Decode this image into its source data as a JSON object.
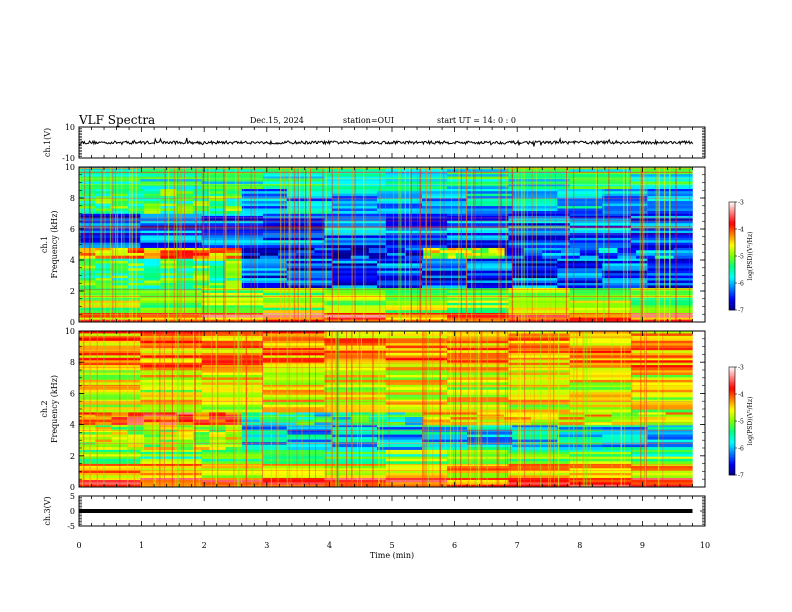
{
  "header": {
    "title": "VLF Spectra",
    "date": "Dec.15, 2024",
    "station": "station=OUI",
    "start_time": "start  UT  =   14: 0   : 0"
  },
  "chart_data": [
    {
      "type": "line",
      "panel": "ch1-waveform",
      "ylabel": "ch.1(V)",
      "ylim": [
        -10,
        10
      ],
      "yticks": [
        -10,
        10
      ],
      "xlim": [
        0,
        9.8
      ],
      "baseline": 0,
      "approx_amplitude_v": 1,
      "color": "#000000"
    },
    {
      "type": "heatmap",
      "panel": "ch1-spectrogram",
      "ylabel": "ch.1\nFrequency  (kHz)",
      "ylim": [
        0,
        10
      ],
      "yticks": [
        0,
        2,
        4,
        6,
        8,
        10
      ],
      "xlim": [
        0,
        9.8
      ],
      "colorbar": {
        "label": "log(PSD)(V²/Hz)",
        "ticks": [
          -3,
          -4,
          -5,
          -6,
          -7
        ],
        "range": [
          -7,
          -3
        ]
      },
      "bands": [
        {
          "from_min": 0,
          "to_min": 9.8,
          "f_lo": 0.0,
          "f_hi": 0.3,
          "level": -4.2
        },
        {
          "from_min": 0,
          "to_min": 9.8,
          "f_lo": 0.3,
          "f_hi": 0.6,
          "level": -3.8
        },
        {
          "from_min": 0,
          "to_min": 9.8,
          "f_lo": 0.6,
          "f_hi": 1.4,
          "level": -4.9
        },
        {
          "from_min": 0,
          "to_min": 9.8,
          "f_lo": 1.4,
          "f_hi": 2.2,
          "level": -5.0
        },
        {
          "from_min": 0,
          "to_min": 2.6,
          "f_lo": 2.2,
          "f_hi": 4.1,
          "level": -5.3
        },
        {
          "from_min": 2.6,
          "to_min": 9.8,
          "f_lo": 2.2,
          "f_hi": 4.1,
          "level": -6.4
        },
        {
          "from_min": 0,
          "to_min": 2.6,
          "f_lo": 4.1,
          "f_hi": 4.8,
          "level": -4.3
        },
        {
          "from_min": 2.6,
          "to_min": 5.5,
          "f_lo": 4.1,
          "f_hi": 4.8,
          "level": -6.6
        },
        {
          "from_min": 5.5,
          "to_min": 6.8,
          "f_lo": 4.1,
          "f_hi": 4.8,
          "level": -4.8
        },
        {
          "from_min": 6.8,
          "to_min": 9.8,
          "f_lo": 4.1,
          "f_hi": 4.8,
          "level": -6.2
        },
        {
          "from_min": 0,
          "to_min": 9.8,
          "f_lo": 4.8,
          "f_hi": 7.0,
          "level": -6.3
        },
        {
          "from_min": 0,
          "to_min": 2.6,
          "f_lo": 7.0,
          "f_hi": 8.6,
          "level": -5.3
        },
        {
          "from_min": 2.6,
          "to_min": 9.8,
          "f_lo": 7.0,
          "f_hi": 8.6,
          "level": -6.0
        },
        {
          "from_min": 0,
          "to_min": 9.8,
          "f_lo": 8.6,
          "f_hi": 10.0,
          "level": -5.6
        }
      ]
    },
    {
      "type": "heatmap",
      "panel": "ch2-spectrogram",
      "ylabel": "ch.2\nFrequency  (kHz)",
      "ylim": [
        0,
        10
      ],
      "yticks": [
        0,
        2,
        4,
        6,
        8,
        10
      ],
      "xlim": [
        0,
        9.8
      ],
      "colorbar": {
        "label": "log(PSD)(V²/Hz)",
        "ticks": [
          -3,
          -4,
          -5,
          -6,
          -7
        ],
        "range": [
          -7,
          -3
        ]
      },
      "bands": [
        {
          "from_min": 0,
          "to_min": 9.8,
          "f_lo": 0.0,
          "f_hi": 0.6,
          "level": -4.0
        },
        {
          "from_min": 0,
          "to_min": 9.8,
          "f_lo": 0.6,
          "f_hi": 1.5,
          "level": -4.5
        },
        {
          "from_min": 0,
          "to_min": 9.8,
          "f_lo": 1.5,
          "f_hi": 2.4,
          "level": -5.2
        },
        {
          "from_min": 0,
          "to_min": 2.6,
          "f_lo": 2.4,
          "f_hi": 4.0,
          "level": -4.8
        },
        {
          "from_min": 2.6,
          "to_min": 9.8,
          "f_lo": 2.4,
          "f_hi": 4.0,
          "level": -5.9
        },
        {
          "from_min": 0,
          "to_min": 2.6,
          "f_lo": 4.0,
          "f_hi": 4.8,
          "level": -3.9
        },
        {
          "from_min": 2.6,
          "to_min": 5.5,
          "f_lo": 4.0,
          "f_hi": 4.8,
          "level": -5.6
        },
        {
          "from_min": 5.5,
          "to_min": 9.8,
          "f_lo": 4.0,
          "f_hi": 4.8,
          "level": -4.6
        },
        {
          "from_min": 0,
          "to_min": 9.8,
          "f_lo": 4.8,
          "f_hi": 7.5,
          "level": -4.7
        },
        {
          "from_min": 0,
          "to_min": 9.8,
          "f_lo": 7.5,
          "f_hi": 10.0,
          "level": -4.3
        }
      ]
    },
    {
      "type": "line",
      "panel": "ch3-waveform",
      "ylabel": "ch.3(V)",
      "ylim": [
        -5,
        5
      ],
      "yticks": [
        -5,
        0,
        5
      ],
      "xlim": [
        0,
        9.8
      ],
      "baseline": 0,
      "color": "#000000"
    }
  ],
  "x_axis": {
    "label": "Time  (min)",
    "range": [
      0,
      10
    ],
    "ticks": [
      "0",
      "1",
      "2",
      "3",
      "4",
      "5",
      "6",
      "7",
      "8",
      "9",
      "10"
    ]
  },
  "colormap": [
    "#00007f",
    "#0000ff",
    "#007fff",
    "#00ffff",
    "#00ff7f",
    "#7fff00",
    "#ffff00",
    "#ff7f00",
    "#ff0000",
    "#ff7f7f",
    "#ffffff"
  ]
}
